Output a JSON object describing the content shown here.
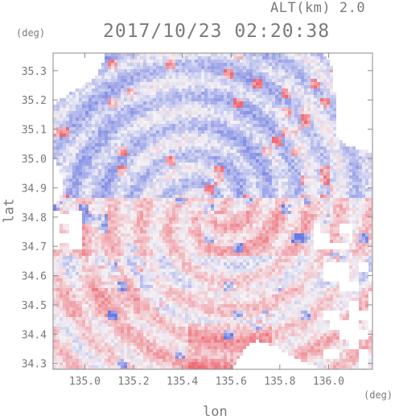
{
  "header": {
    "altitude_label": "ALT(km) 2.0",
    "timestamp": "2017/10/23 02:20:38"
  },
  "chart_data": {
    "type": "heatmap",
    "title": "2017/10/23 02:20:38",
    "subtitle": "ALT(km) 2.0",
    "xlabel": "lon",
    "ylabel": "lat",
    "x_unit": "(deg)",
    "y_unit": "(deg)",
    "xlim": [
      134.87,
      136.18
    ],
    "ylim": [
      34.28,
      35.36
    ],
    "x_ticks": [
      135.0,
      135.2,
      135.4,
      135.6,
      135.8,
      136.0
    ],
    "x_tick_labels": [
      "135.0",
      "135.2",
      "135.4",
      "135.6",
      "135.8",
      "136.0"
    ],
    "y_ticks": [
      34.3,
      34.4,
      34.5,
      34.6,
      34.7,
      34.8,
      34.9,
      35.0,
      35.1,
      35.2,
      35.3
    ],
    "y_tick_labels": [
      "34.3",
      "34.4",
      "34.5",
      "34.6",
      "34.7",
      "34.8",
      "34.9",
      "35.0",
      "35.1",
      "35.2",
      "35.3"
    ],
    "radar_center": {
      "lon": 135.52,
      "lat": 34.82
    },
    "colormap": {
      "negative": "#6a78e0",
      "zero": "#f4f2f6",
      "positive": "#ee6a74"
    },
    "grid": false
  }
}
